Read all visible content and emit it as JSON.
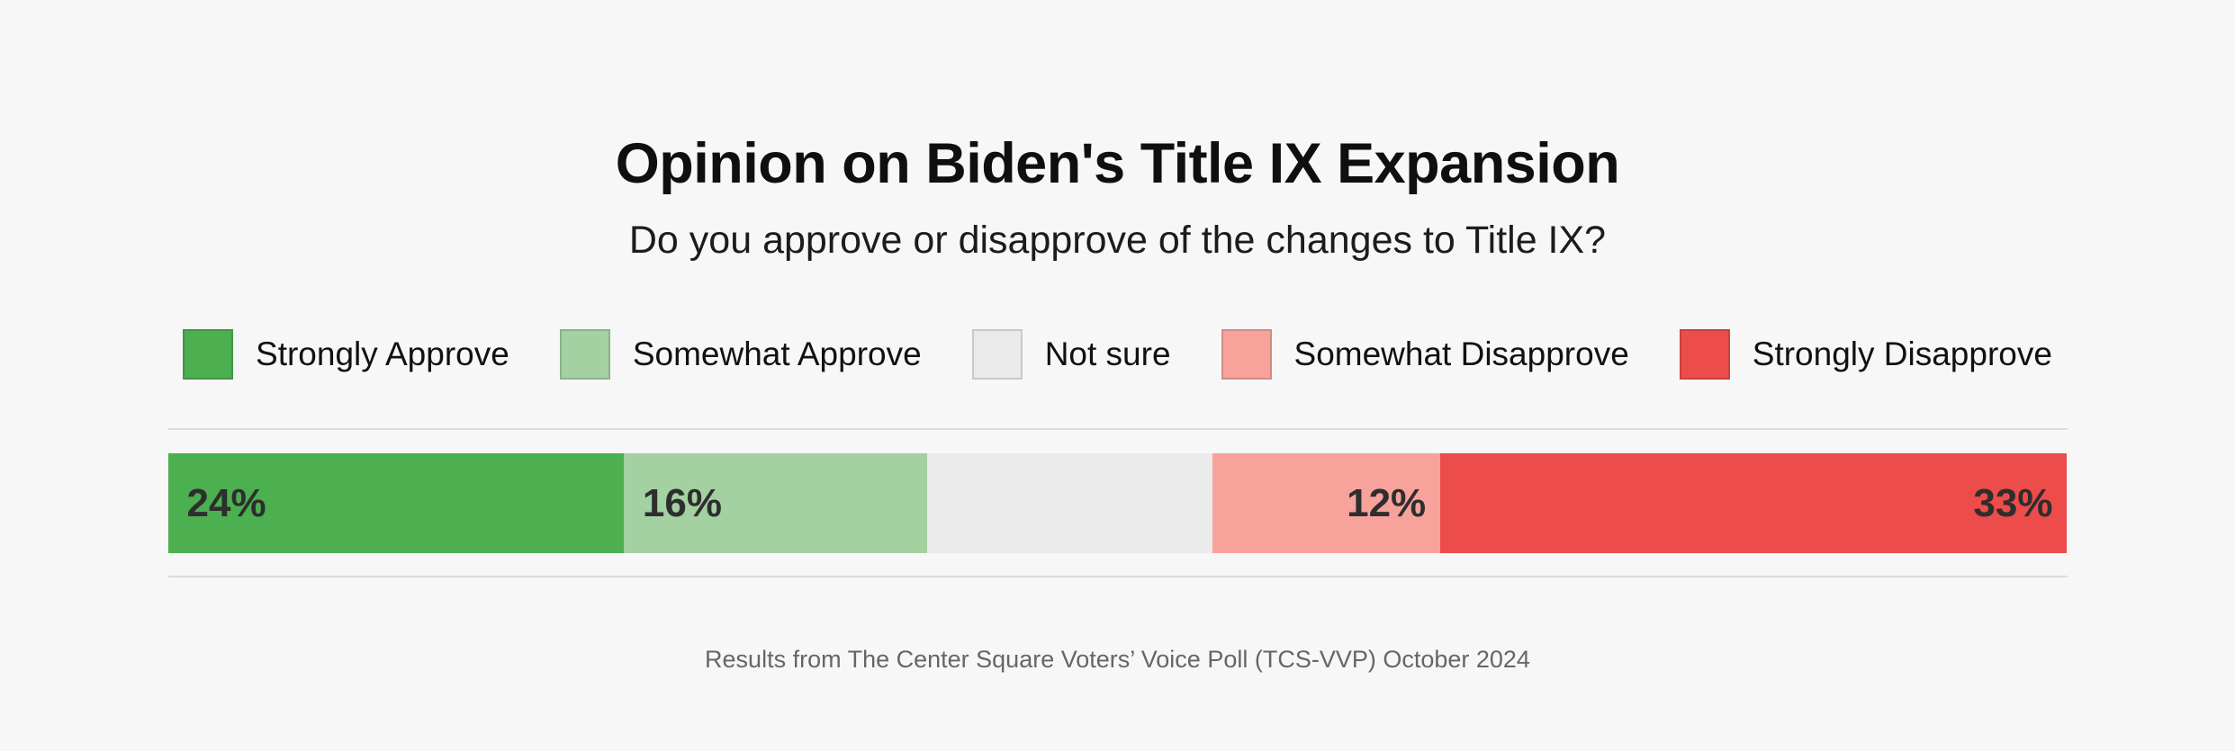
{
  "header": {
    "title": "Opinion on Biden's Title IX Expansion",
    "subtitle": "Do you approve or disapprove of the changes to Title IX?"
  },
  "footer": {
    "source": "Results from The Center Square Voters’ Voice Poll (TCS-VVP) October 2024"
  },
  "colors": {
    "background": "#F7F7F7",
    "divider": "#DBDBDB",
    "title_text": "#0F0F0F",
    "bar_label_text": "#2E2E2E",
    "footer_text": "#666668",
    "strongly_approve": "#4CAF50",
    "somewhat_approve": "#A3D1A1",
    "not_sure": "#EAEAEA",
    "somewhat_disapprove": "#F7A29B",
    "strongly_disapprove": "#EC4C4A"
  },
  "chart_data": {
    "type": "bar",
    "subtype": "horizontal-stacked-100pct",
    "title": "Opinion on Biden's Title IX Expansion",
    "subtitle": "Do you approve or disapprove of the changes to Title IX?",
    "unit": "%",
    "categories": [
      "Strongly Approve",
      "Somewhat Approve",
      "Not sure",
      "Somewhat Disapprove",
      "Strongly Disapprove"
    ],
    "values": [
      24,
      16,
      15,
      12,
      33
    ],
    "legend_position": "top",
    "grid": false,
    "segments": [
      {
        "label": "Strongly Approve",
        "value": 24,
        "display": "24%",
        "color": "#4CAF50",
        "label_align": "left"
      },
      {
        "label": "Somewhat Approve",
        "value": 16,
        "display": "16%",
        "color": "#A3D1A1",
        "label_align": "left"
      },
      {
        "label": "Not sure",
        "value": 15,
        "display": "",
        "color": "#EAEAEA",
        "label_align": "none"
      },
      {
        "label": "Somewhat Disapprove",
        "value": 12,
        "display": "12%",
        "color": "#F7A29B",
        "label_align": "right"
      },
      {
        "label": "Strongly Disapprove",
        "value": 33,
        "display": "33%",
        "color": "#EC4C4A",
        "label_align": "right"
      }
    ]
  }
}
